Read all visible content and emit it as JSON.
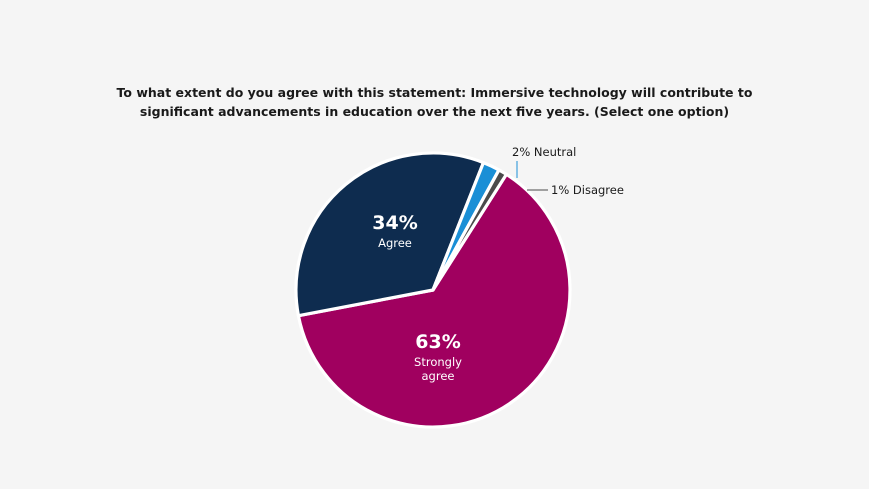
{
  "chart_data": {
    "type": "pie",
    "title_lines": [
      "To what extent do you agree with this statement: Immersive technology will contribute to",
      "significant advancements in education over the next five years. (Select one option)"
    ],
    "slices": [
      {
        "category": "Strongly agree",
        "value": 63,
        "percent_label": "63%",
        "label_lines": [
          "Strongly",
          "agree"
        ],
        "color": "#a0005f",
        "label_position": "inside"
      },
      {
        "category": "Agree",
        "value": 34,
        "percent_label": "34%",
        "label_lines": [
          "Agree"
        ],
        "color": "#0e2c4f",
        "label_position": "inside"
      },
      {
        "category": "Neutral",
        "value": 2,
        "percent_label": "2%",
        "label_text": "2% Neutral",
        "color": "#1a8fd6",
        "label_position": "outside"
      },
      {
        "category": "Disagree",
        "value": 1,
        "percent_label": "1%",
        "label_text": "1% Disagree",
        "color": "#4a4a4a",
        "label_position": "outside"
      }
    ],
    "legend": "none"
  }
}
